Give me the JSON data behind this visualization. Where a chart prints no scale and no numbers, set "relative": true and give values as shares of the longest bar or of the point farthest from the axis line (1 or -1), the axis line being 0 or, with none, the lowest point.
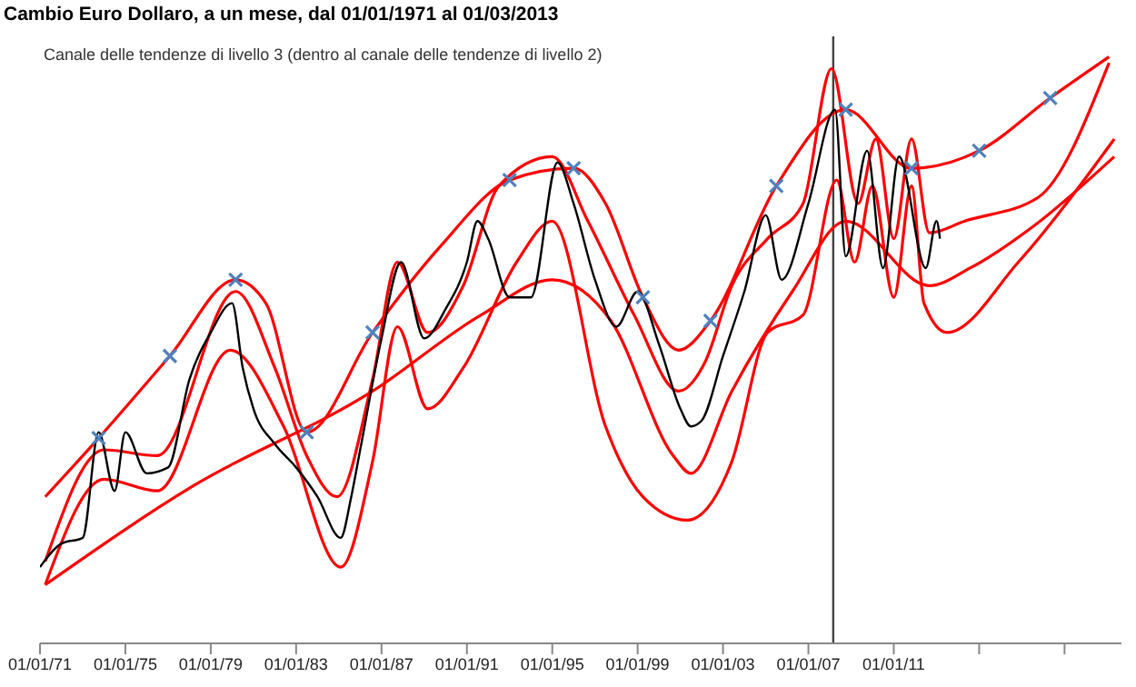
{
  "chart_data": {
    "type": "line",
    "title": "Cambio Euro Dollaro,  a un mese,  dal 01/01/1971  al 01/03/2013",
    "annotations": [
      "Canale delle tendenze  di livello 3 (dentro al canale delle tendenze  di livello 2)"
    ],
    "relative": true,
    "grid": false,
    "line_style": "solid",
    "xlim": [
      "1971-01-01",
      "2021-09-01"
    ],
    "xticks": [
      {
        "value": "1971-01-01",
        "label": "01/01/71"
      },
      {
        "value": "1975-01-01",
        "label": "01/01/75"
      },
      {
        "value": "1979-01-01",
        "label": "01/01/79"
      },
      {
        "value": "1983-01-01",
        "label": "01/01/83"
      },
      {
        "value": "1987-01-01",
        "label": "01/01/87"
      },
      {
        "value": "1991-01-01",
        "label": "01/01/91"
      },
      {
        "value": "1995-01-01",
        "label": "01/01/95"
      },
      {
        "value": "1999-01-01",
        "label": "01/01/99"
      },
      {
        "value": "2003-01-01",
        "label": "01/01/03"
      },
      {
        "value": "2007-01-01",
        "label": "01/01/07"
      },
      {
        "value": "2011-01-01",
        "label": "01/01/11"
      },
      {
        "value": "2015-01-01",
        "label": null
      },
      {
        "value": "2019-01-01",
        "label": null
      }
    ],
    "ref_lines": [
      {
        "axis": "x",
        "value": "2008-03",
        "label": null,
        "color": "#404040"
      }
    ],
    "series": [
      {
        "color": "#ff0000",
        "x": [
          "1971-04",
          "1973-10",
          "1977-02",
          "1980-03",
          "1981-08",
          "1983-07",
          "1986-08",
          "1989-11",
          "1993-01",
          "1996-01",
          "1997-07",
          "1999-04",
          "2000-12",
          "2002-06",
          "2005-07",
          "2008-10",
          "2011-11",
          "2015-01",
          "2018-05",
          "2021-02"
        ],
        "values": [
          0.25,
          0.35,
          0.49,
          0.62,
          0.58,
          0.36,
          0.53,
          0.68,
          0.79,
          0.81,
          0.75,
          0.59,
          0.5,
          0.55,
          0.78,
          0.91,
          0.81,
          0.84,
          0.93,
          1.0
        ]
      },
      {
        "color": "#ff0000",
        "x": [
          "1971-04",
          "1978-04",
          "1986-08",
          "1991-09",
          "1995-01",
          "1997-10",
          "2000-09",
          "2001-07",
          "2003-06",
          "2006-04",
          "2008-10",
          "2012-09",
          "2014-08",
          "2017-07",
          "2021-05"
        ],
        "values": [
          0.1,
          0.27,
          0.43,
          0.56,
          0.62,
          0.55,
          0.32,
          0.29,
          0.43,
          0.6,
          0.72,
          0.61,
          0.64,
          0.71,
          0.83
        ]
      },
      {
        "color": "#ff0000",
        "x": [
          "1971-04",
          "1974-01",
          "1976-07",
          "1980-03",
          "1982-01",
          "1983-07",
          "1984-12",
          "1986-08",
          "1987-10",
          "1989-03",
          "1990-11",
          "1992-07",
          "1995-01",
          "1996-09",
          "1998-11",
          "2000-12",
          "2002-03",
          "2003-06",
          "2005-02",
          "2006-10",
          "2008-02",
          "2009-05",
          "2010-03",
          "2011-01",
          "2011-11",
          "2012-09",
          "2014-05",
          "2017-10",
          "2021-02"
        ],
        "values": [
          0.14,
          0.33,
          0.32,
          0.6,
          0.47,
          0.32,
          0.25,
          0.45,
          0.65,
          0.53,
          0.61,
          0.78,
          0.83,
          0.72,
          0.56,
          0.43,
          0.48,
          0.61,
          0.69,
          0.75,
          0.98,
          0.75,
          0.86,
          0.69,
          0.86,
          0.7,
          0.72,
          0.76,
          0.99
        ]
      },
      {
        "color": "#ff0000",
        "x": [
          "1971-04",
          "1974-01",
          "1976-07",
          "1979-12",
          "1982-06",
          "1985-02",
          "1986-08",
          "1987-10",
          "1989-03",
          "1990-11",
          "1993-05",
          "1995-01",
          "1997-07",
          "1999-04",
          "2001-05",
          "2003-06",
          "2005-02",
          "2006-10",
          "2008-05",
          "2009-03",
          "2010-01",
          "2011-01",
          "2011-11",
          "2012-06",
          "2013-07",
          "2016-11",
          "2021-05"
        ],
        "values": [
          0.1,
          0.28,
          0.26,
          0.5,
          0.37,
          0.13,
          0.31,
          0.54,
          0.4,
          0.47,
          0.65,
          0.72,
          0.37,
          0.25,
          0.21,
          0.31,
          0.53,
          0.56,
          0.79,
          0.65,
          0.78,
          0.59,
          0.78,
          0.58,
          0.53,
          0.65,
          0.86
        ]
      },
      {
        "color": "#000000",
        "x": [
          "1971-01",
          "1972-01",
          "1973-01",
          "1973-10",
          "1974-07",
          "1975-01",
          "1976-01",
          "1977-01",
          "1978-01",
          "1979-01",
          "1980-01",
          "1980-07",
          "1981-01",
          "1982-01",
          "1983-01",
          "1984-01",
          "1985-02",
          "1985-08",
          "1986-01",
          "1987-01",
          "1987-12",
          "1989-01",
          "1990-01",
          "1991-01",
          "1991-07",
          "1992-01",
          "1993-01",
          "1994-01",
          "1995-04",
          "1996-01",
          "1997-01",
          "1998-01",
          "1999-01",
          "2000-01",
          "2001-01",
          "2001-07",
          "2002-01",
          "2003-01",
          "2004-01",
          "2005-01",
          "2005-10",
          "2007-01",
          "2008-04",
          "2008-10",
          "2009-10",
          "2010-07",
          "2011-04",
          "2012-07",
          "2013-01",
          "2013-03"
        ],
        "values": [
          0.13,
          0.17,
          0.18,
          0.36,
          0.26,
          0.36,
          0.29,
          0.3,
          0.45,
          0.53,
          0.58,
          0.47,
          0.4,
          0.34,
          0.3,
          0.25,
          0.18,
          0.25,
          0.33,
          0.52,
          0.65,
          0.52,
          0.57,
          0.65,
          0.72,
          0.69,
          0.59,
          0.59,
          0.82,
          0.75,
          0.62,
          0.54,
          0.6,
          0.51,
          0.4,
          0.37,
          0.38,
          0.49,
          0.6,
          0.73,
          0.62,
          0.75,
          0.91,
          0.66,
          0.84,
          0.64,
          0.83,
          0.64,
          0.72,
          0.69
        ]
      },
      {
        "type": "scatter",
        "color": "#4f81bd",
        "marker": "cross",
        "x": [
          "1973-10",
          "1977-02",
          "1980-03",
          "1983-07",
          "1986-08",
          "1993-01",
          "1996-01",
          "1999-04",
          "2002-06",
          "2005-07",
          "2008-10",
          "2011-11",
          "2015-01",
          "2018-05"
        ],
        "values": [
          0.35,
          0.49,
          0.62,
          0.36,
          0.53,
          0.79,
          0.81,
          0.59,
          0.55,
          0.78,
          0.91,
          0.81,
          0.84,
          0.93
        ]
      }
    ]
  }
}
